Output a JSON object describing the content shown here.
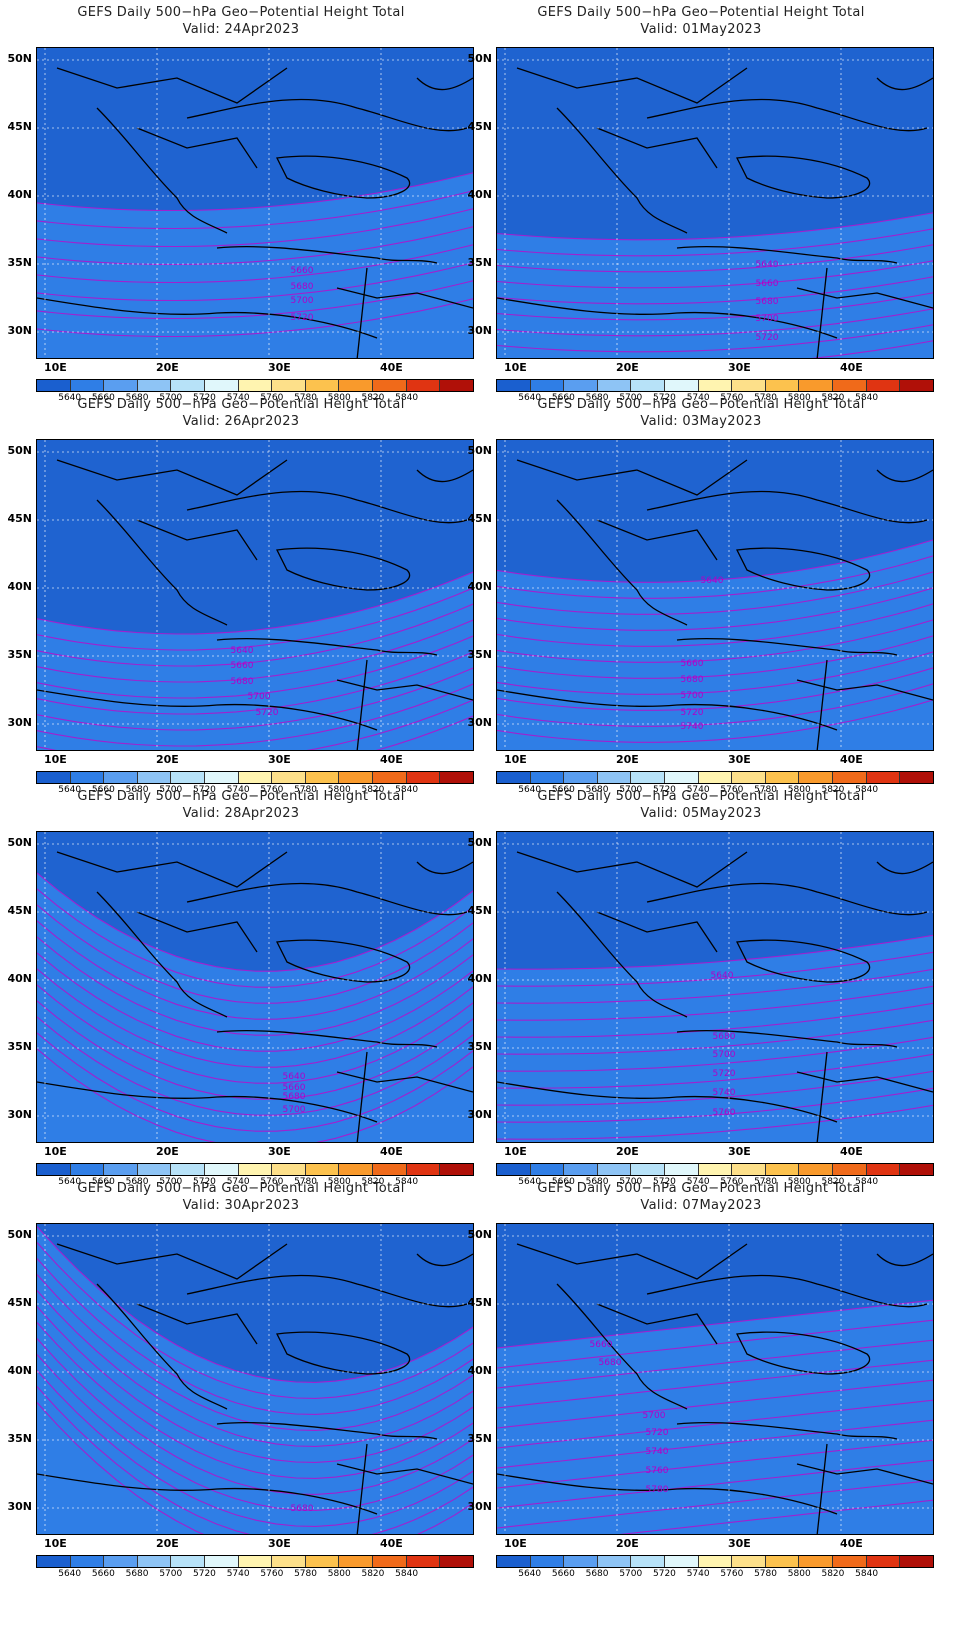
{
  "common_title": "GEFS Daily 500−hPa Geo−Potential Height Total",
  "valid_prefix": "Valid: ",
  "lat_labels": [
    "50N",
    "45N",
    "40N",
    "35N",
    "30N"
  ],
  "lon_labels": [
    "10E",
    "20E",
    "30E",
    "40E"
  ],
  "colorbar": {
    "labels": [
      "5640",
      "5660",
      "5680",
      "5700",
      "5720",
      "5740",
      "5760",
      "5780",
      "5800",
      "5820",
      "5840"
    ],
    "colors": [
      "#1a5fcf",
      "#2f7ee6",
      "#5a9ef0",
      "#8ec4f5",
      "#b7e2f8",
      "#e0f7fb",
      "#fff4b0",
      "#fde08a",
      "#fcc24e",
      "#f99a2c",
      "#f06a1a",
      "#e03412",
      "#b01008"
    ]
  },
  "panels": [
    {
      "valid": "24Apr2023",
      "contour_labels": [
        "5660",
        "5680",
        "5700",
        "5720"
      ]
    },
    {
      "valid": "01May2023",
      "contour_labels": [
        "5640",
        "5660",
        "5680",
        "5700",
        "5720"
      ]
    },
    {
      "valid": "26Apr2023",
      "contour_labels": [
        "5640",
        "5660",
        "5680",
        "5700",
        "5720"
      ]
    },
    {
      "valid": "03May2023",
      "contour_labels": [
        "5640",
        "5660",
        "5680",
        "5700",
        "5720",
        "5740"
      ]
    },
    {
      "valid": "28Apr2023",
      "contour_labels": [
        "5640",
        "5660",
        "5680",
        "5700"
      ]
    },
    {
      "valid": "05May2023",
      "contour_labels": [
        "5640",
        "5680",
        "5700",
        "5720",
        "5740",
        "5760"
      ]
    },
    {
      "valid": "30Apr2023",
      "contour_labels": [
        "5680"
      ]
    },
    {
      "valid": "07May2023",
      "contour_labels": [
        "5660",
        "5680",
        "5700",
        "5720",
        "5740",
        "5760",
        "5780"
      ]
    }
  ]
}
